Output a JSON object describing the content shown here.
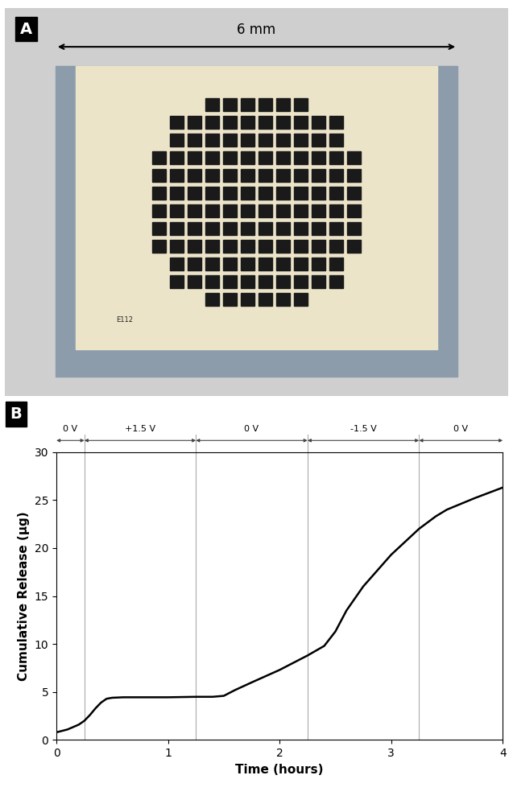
{
  "panel_a": {
    "label": "A",
    "scale_bar": "6 mm",
    "chip_text": "E112"
  },
  "panel_b_label": "B",
  "chart_data": {
    "type": "line",
    "x_label": "Time (hours)",
    "y_label": "Cumulative Release (µg)",
    "x": [
      0,
      0.1,
      0.2,
      0.25,
      0.3,
      0.35,
      0.4,
      0.45,
      0.5,
      0.6,
      0.8,
      1.0,
      1.25,
      1.4,
      1.5,
      1.6,
      1.75,
      2.0,
      2.25,
      2.4,
      2.5,
      2.6,
      2.75,
      3.0,
      3.25,
      3.4,
      3.5,
      3.75,
      4.0
    ],
    "values": [
      0.8,
      1.1,
      1.6,
      2.0,
      2.6,
      3.3,
      3.9,
      4.3,
      4.4,
      4.45,
      4.45,
      4.45,
      4.5,
      4.5,
      4.6,
      5.2,
      6.0,
      7.3,
      8.8,
      9.8,
      11.3,
      13.5,
      16.0,
      19.3,
      22.0,
      23.3,
      24.0,
      25.2,
      26.3
    ],
    "color": "#000000",
    "xlim": [
      0,
      4
    ],
    "xticks": [
      0,
      1,
      2,
      3,
      4
    ],
    "ylim": [
      0,
      30
    ],
    "yticks": [
      0,
      5,
      10,
      15,
      20,
      25,
      30
    ],
    "grid": false,
    "annotations": [
      {
        "text": "0 V",
        "from": 0,
        "to": 0.25
      },
      {
        "text": "+1.5 V",
        "from": 0.25,
        "to": 1.25
      },
      {
        "text": "0 V",
        "from": 1.25,
        "to": 2.25
      },
      {
        "text": "-1.5 V",
        "from": 2.25,
        "to": 3.25
      },
      {
        "text": "0 V",
        "from": 3.25,
        "to": 4
      }
    ]
  }
}
